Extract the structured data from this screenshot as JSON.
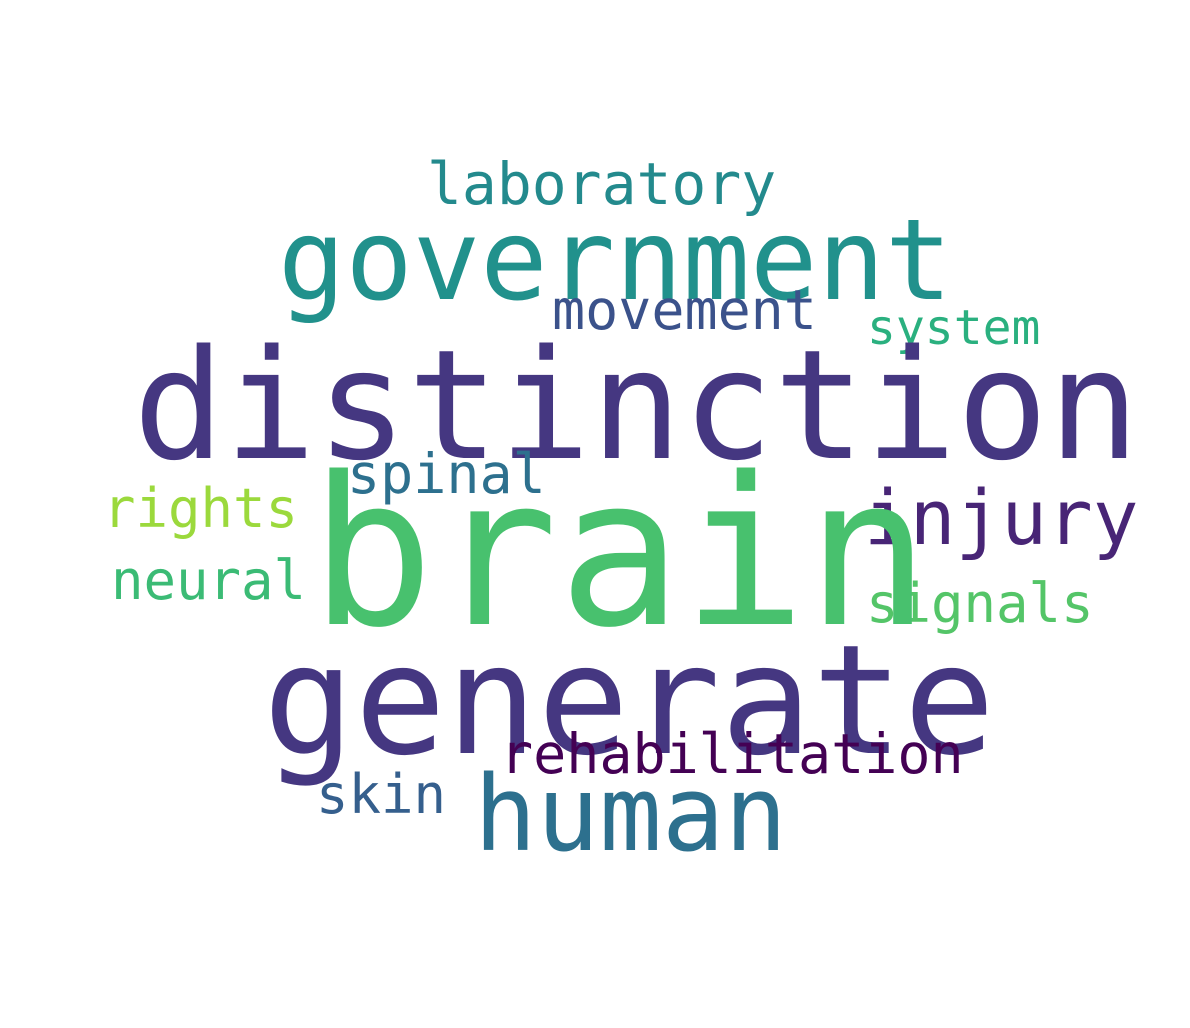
{
  "words": {
    "brain": {
      "text": "brain",
      "color": "#48c16e"
    },
    "distinction": {
      "text": "distinction",
      "color": "#453781"
    },
    "generate": {
      "text": "generate",
      "color": "#453781"
    },
    "government": {
      "text": "government",
      "color": "#21918c"
    },
    "human": {
      "text": "human",
      "color": "#2d708e"
    },
    "injury": {
      "text": "injury",
      "color": "#482576"
    },
    "laboratory": {
      "text": "laboratory",
      "color": "#238a8d"
    },
    "movement": {
      "text": "movement",
      "color": "#3b528b"
    },
    "rehabilitation": {
      "text": "rehabilitation",
      "color": "#440154"
    },
    "spinal": {
      "text": "spinal",
      "color": "#2d708e"
    },
    "rights": {
      "text": "rights",
      "color": "#9bd93c"
    },
    "neural": {
      "text": "neural",
      "color": "#3bbb75"
    },
    "signals": {
      "text": "signals",
      "color": "#54c568"
    },
    "system": {
      "text": "system",
      "color": "#2ab07f"
    },
    "skin": {
      "text": "skin",
      "color": "#355f8d"
    }
  }
}
